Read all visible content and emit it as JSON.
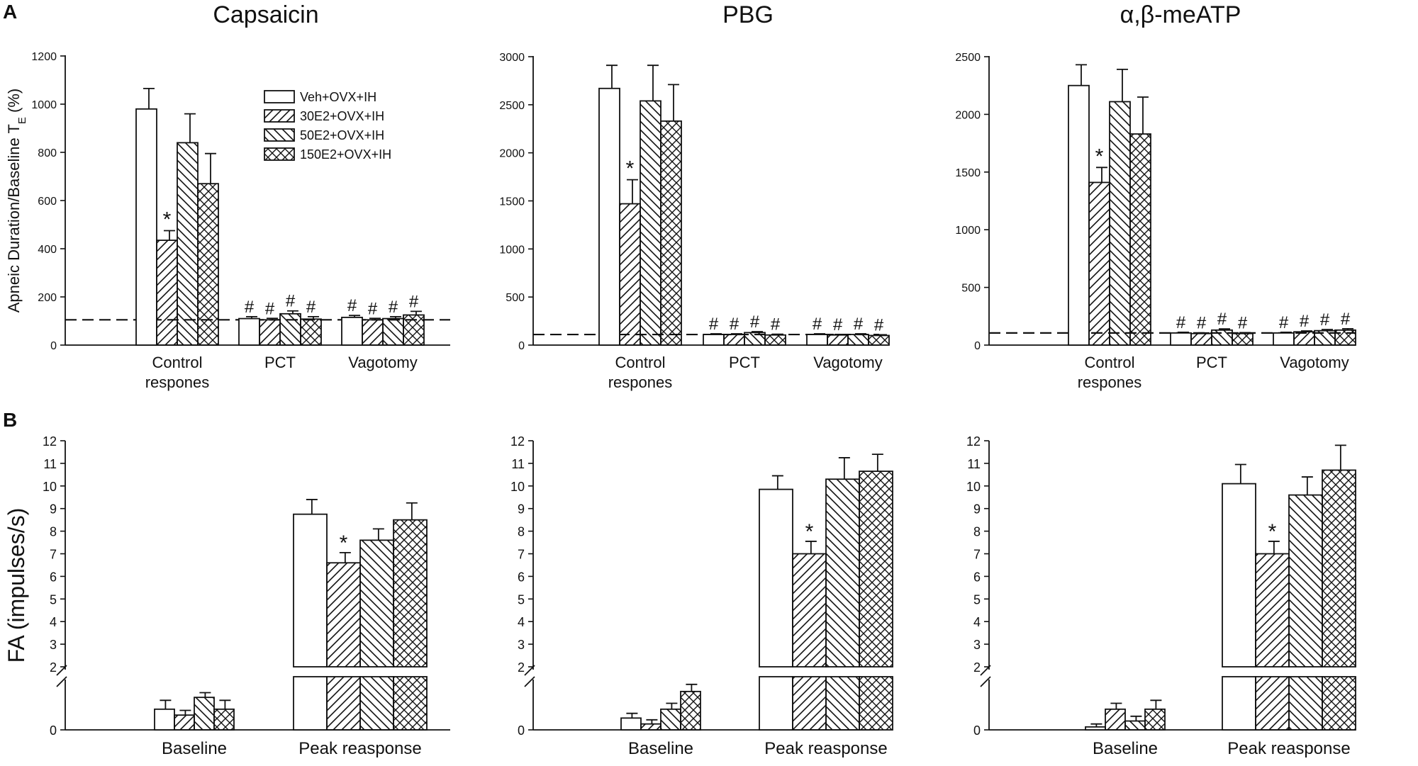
{
  "panels": {
    "A": "A",
    "B": "B"
  },
  "legend": [
    "Veh+OVX+IH",
    "30E2+OVX+IH",
    "50E2+OVX+IH",
    "150E2+OVX+IH"
  ],
  "colors": {
    "ink": "#111111",
    "fill": "#ffffff"
  },
  "chart_data": [
    {
      "id": "A1",
      "type": "bar",
      "title": "Capsaicin",
      "ylabel": "Apneic Duration/Baseline T",
      "ylabel_sub": "E",
      "ylabel_unit": "(%)",
      "categories": [
        "Control\nrespones",
        "PCT",
        "Vagotomy"
      ],
      "ylim": [
        0,
        1200
      ],
      "yticks": [
        0,
        200,
        400,
        600,
        800,
        1000,
        1200
      ],
      "baseline_ref": 105,
      "series": [
        {
          "name": "Veh+OVX+IH",
          "values": [
            980,
            110,
            115
          ],
          "errors": [
            85,
            8,
            8
          ],
          "marks": [
            "",
            "#",
            "#"
          ]
        },
        {
          "name": "30E2+OVX+IH",
          "values": [
            435,
            105,
            105
          ],
          "errors": [
            40,
            6,
            6
          ],
          "marks": [
            "*",
            "#",
            "#"
          ]
        },
        {
          "name": "50E2+OVX+IH",
          "values": [
            840,
            130,
            110
          ],
          "errors": [
            120,
            12,
            8
          ],
          "marks": [
            "",
            "#",
            "#"
          ]
        },
        {
          "name": "150E2+OVX+IH",
          "values": [
            670,
            108,
            125
          ],
          "errors": [
            125,
            10,
            15
          ],
          "marks": [
            "",
            "#",
            "#"
          ]
        }
      ]
    },
    {
      "id": "A2",
      "type": "bar",
      "title": "PBG",
      "categories": [
        "Control\nrespones",
        "PCT",
        "Vagotomy"
      ],
      "ylim": [
        0,
        3000
      ],
      "yticks": [
        0,
        500,
        1000,
        1500,
        2000,
        2500,
        3000
      ],
      "baseline_ref": 110,
      "series": [
        {
          "name": "Veh+OVX+IH",
          "values": [
            2670,
            110,
            110
          ],
          "errors": [
            240,
            8,
            8
          ],
          "marks": [
            "",
            "#",
            "#"
          ]
        },
        {
          "name": "30E2+OVX+IH",
          "values": [
            1470,
            110,
            105
          ],
          "errors": [
            250,
            8,
            6
          ],
          "marks": [
            "*",
            "#",
            "#"
          ]
        },
        {
          "name": "50E2+OVX+IH",
          "values": [
            2540,
            130,
            110
          ],
          "errors": [
            370,
            10,
            8
          ],
          "marks": [
            "",
            "#",
            "#"
          ]
        },
        {
          "name": "150E2+OVX+IH",
          "values": [
            2330,
            105,
            100
          ],
          "errors": [
            380,
            8,
            8
          ],
          "marks": [
            "",
            "#",
            "#"
          ]
        }
      ]
    },
    {
      "id": "A3",
      "type": "bar",
      "title": "α,β-meATP",
      "categories": [
        "Control\nrespones",
        "PCT",
        "Vagotomy"
      ],
      "ylim": [
        0,
        2500
      ],
      "yticks": [
        0,
        500,
        1000,
        1500,
        2000,
        2500
      ],
      "baseline_ref": 105,
      "series": [
        {
          "name": "Veh+OVX+IH",
          "values": [
            2250,
            105,
            105
          ],
          "errors": [
            180,
            6,
            6
          ],
          "marks": [
            "",
            "#",
            "#"
          ]
        },
        {
          "name": "30E2+OVX+IH",
          "values": [
            1410,
            100,
            115
          ],
          "errors": [
            130,
            6,
            8
          ],
          "marks": [
            "*",
            "#",
            "#"
          ]
        },
        {
          "name": "50E2+OVX+IH",
          "values": [
            2110,
            130,
            125
          ],
          "errors": [
            280,
            10,
            10
          ],
          "marks": [
            "",
            "#",
            "#"
          ]
        },
        {
          "name": "150E2+OVX+IH",
          "values": [
            1830,
            100,
            130
          ],
          "errors": [
            320,
            8,
            12
          ],
          "marks": [
            "",
            "#",
            "#"
          ]
        }
      ]
    },
    {
      "id": "B1",
      "type": "bar",
      "title": "",
      "ylabel": "FA (impulses/s)",
      "categories": [
        "Baseline",
        "Peak reasponse"
      ],
      "yticks": [
        0,
        2,
        3,
        4,
        5,
        6,
        7,
        8,
        9,
        10,
        11,
        12
      ],
      "axis_break": [
        0.9,
        2
      ],
      "series": [
        {
          "name": "Veh+OVX+IH",
          "values": [
            0.35,
            8.75
          ],
          "errors": [
            0.15,
            0.65
          ],
          "marks": [
            "",
            ""
          ]
        },
        {
          "name": "30E2+OVX+IH",
          "values": [
            0.25,
            6.6
          ],
          "errors": [
            0.08,
            0.45
          ],
          "marks": [
            "",
            "*"
          ]
        },
        {
          "name": "50E2+OVX+IH",
          "values": [
            0.55,
            7.6
          ],
          "errors": [
            0.08,
            0.5
          ],
          "marks": [
            "",
            ""
          ]
        },
        {
          "name": "150E2+OVX+IH",
          "values": [
            0.35,
            8.5
          ],
          "errors": [
            0.15,
            0.75
          ],
          "marks": [
            "",
            ""
          ]
        }
      ]
    },
    {
      "id": "B2",
      "type": "bar",
      "title": "",
      "categories": [
        "Baseline",
        "Peak reasponse"
      ],
      "yticks": [
        0,
        2,
        3,
        4,
        5,
        6,
        7,
        8,
        9,
        10,
        11,
        12
      ],
      "axis_break": [
        0.9,
        2
      ],
      "series": [
        {
          "name": "Veh+OVX+IH",
          "values": [
            0.2,
            9.85
          ],
          "errors": [
            0.08,
            0.6
          ],
          "marks": [
            "",
            ""
          ]
        },
        {
          "name": "30E2+OVX+IH",
          "values": [
            0.1,
            7.0
          ],
          "errors": [
            0.07,
            0.55
          ],
          "marks": [
            "",
            "*"
          ]
        },
        {
          "name": "50E2+OVX+IH",
          "values": [
            0.35,
            10.3
          ],
          "errors": [
            0.1,
            0.95
          ],
          "marks": [
            "",
            ""
          ]
        },
        {
          "name": "150E2+OVX+IH",
          "values": [
            0.65,
            10.65
          ],
          "errors": [
            0.12,
            0.75
          ],
          "marks": [
            "",
            ""
          ]
        }
      ]
    },
    {
      "id": "B3",
      "type": "bar",
      "title": "",
      "categories": [
        "Baseline",
        "Peak reasponse"
      ],
      "yticks": [
        0,
        2,
        3,
        4,
        5,
        6,
        7,
        8,
        9,
        10,
        11,
        12
      ],
      "axis_break": [
        0.9,
        2
      ],
      "series": [
        {
          "name": "Veh+OVX+IH",
          "values": [
            0.05,
            10.1
          ],
          "errors": [
            0.05,
            0.85
          ],
          "marks": [
            "",
            ""
          ]
        },
        {
          "name": "30E2+OVX+IH",
          "values": [
            0.35,
            7.0
          ],
          "errors": [
            0.1,
            0.55
          ],
          "marks": [
            "",
            "*"
          ]
        },
        {
          "name": "50E2+OVX+IH",
          "values": [
            0.15,
            9.6
          ],
          "errors": [
            0.08,
            0.8
          ],
          "marks": [
            "",
            ""
          ]
        },
        {
          "name": "150E2+OVX+IH",
          "values": [
            0.35,
            10.7
          ],
          "errors": [
            0.15,
            1.1
          ],
          "marks": [
            "",
            ""
          ]
        }
      ]
    }
  ]
}
